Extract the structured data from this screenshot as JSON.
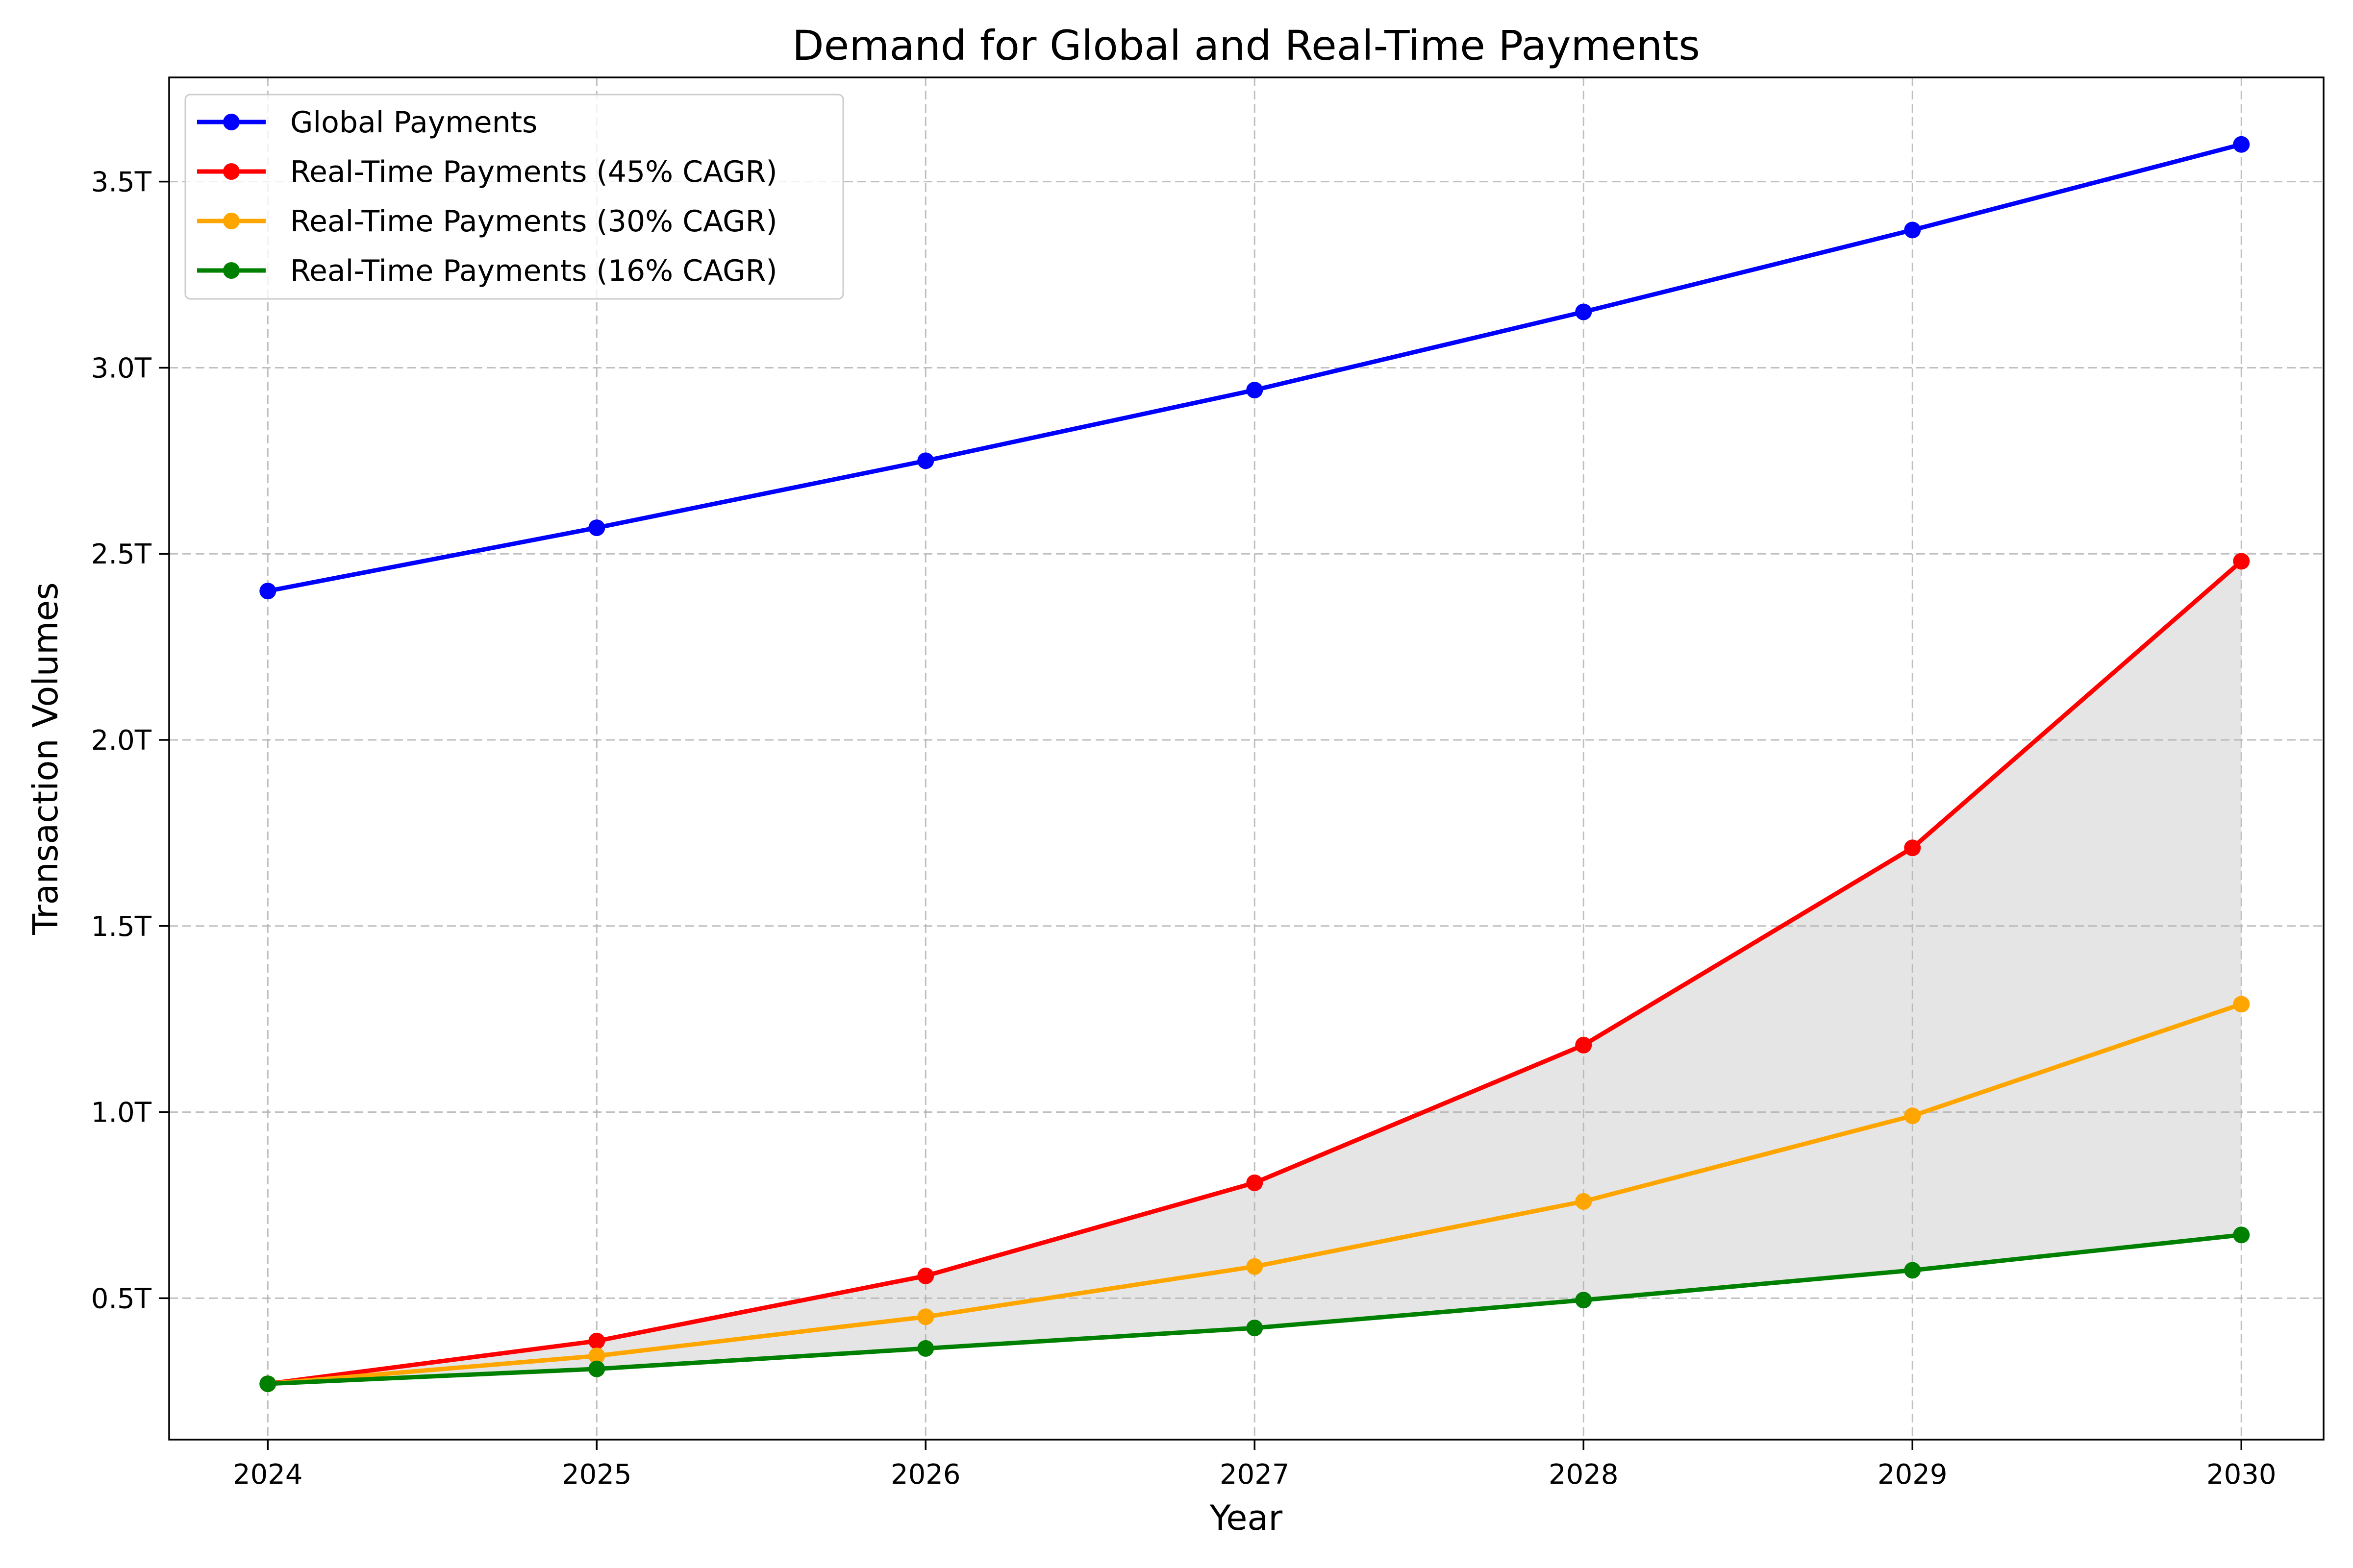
{
  "chart_data": {
    "type": "line",
    "title": "Demand for Global and Real-Time Payments",
    "xlabel": "Year",
    "ylabel": "Transaction Volumes",
    "x": [
      "2024",
      "2025",
      "2026",
      "2027",
      "2028",
      "2029",
      "2030"
    ],
    "xlim": [
      2023.7,
      2030.25
    ],
    "ylim": [
      0.12,
      3.78
    ],
    "y_ticks": [
      0.5,
      1.0,
      1.5,
      2.0,
      2.5,
      3.0,
      3.5
    ],
    "y_tick_labels": [
      "0.5T",
      "1.0T",
      "1.5T",
      "2.0T",
      "2.5T",
      "3.0T",
      "3.5T"
    ],
    "grid": true,
    "legend_position": "top-left",
    "fill_between": {
      "upper": "Real-Time Payments (45% CAGR)",
      "lower": "Real-Time Payments (16% CAGR)",
      "color": "#e5e5e5"
    },
    "series": [
      {
        "name": "Global Payments",
        "color": "#0000ff",
        "values": [
          2.4,
          2.57,
          2.75,
          2.94,
          3.15,
          3.37,
          3.6
        ]
      },
      {
        "name": "Real-Time Payments (45% CAGR)",
        "color": "#ff0000",
        "values": [
          0.27,
          0.385,
          0.56,
          0.81,
          1.18,
          1.71,
          2.48
        ]
      },
      {
        "name": "Real-Time Payments (30% CAGR)",
        "color": "#ffa500",
        "values": [
          0.27,
          0.345,
          0.45,
          0.585,
          0.76,
          0.99,
          1.29
        ]
      },
      {
        "name": "Real-Time Payments (16% CAGR)",
        "color": "#008000",
        "values": [
          0.27,
          0.31,
          0.365,
          0.42,
          0.495,
          0.575,
          0.67
        ]
      }
    ]
  }
}
